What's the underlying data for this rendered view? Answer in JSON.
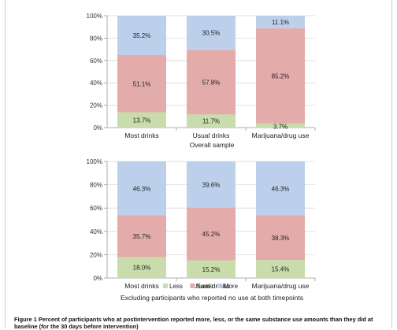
{
  "colors": {
    "less": "#c9dcab",
    "same": "#e4abab",
    "more": "#bcd0ec",
    "axis": "#9a9a9a",
    "grid": "#d9d9d9"
  },
  "chart_data": [
    {
      "type": "bar",
      "stacked": true,
      "percent": true,
      "categories": [
        "Most drinks",
        "Usual drinks",
        "Marijuana/drug use"
      ],
      "series": [
        {
          "name": "Less",
          "values": [
            13.7,
            11.7,
            3.7
          ],
          "labels": [
            "13.7%",
            "11.7%",
            "3.7%"
          ]
        },
        {
          "name": "Same",
          "values": [
            51.1,
            57.8,
            85.2
          ],
          "labels": [
            "51.1%",
            "57.8%",
            "85.2%"
          ]
        },
        {
          "name": "More",
          "values": [
            35.2,
            30.5,
            11.1
          ],
          "labels": [
            "35.2%",
            "30.5%",
            "11.1%"
          ]
        }
      ],
      "ylim": [
        0,
        100
      ],
      "yticks": [
        "0%",
        "20%",
        "40%",
        "60%",
        "80%",
        "100%"
      ],
      "xlabel": "Overall sample",
      "grid": true,
      "legend": "none"
    },
    {
      "type": "bar",
      "stacked": true,
      "percent": true,
      "categories": [
        "Most drinks",
        "Usual drinks",
        "Marijuana/drug use"
      ],
      "series": [
        {
          "name": "Less",
          "values": [
            18.0,
            15.2,
            15.4
          ],
          "labels": [
            "18.0%",
            "15.2%",
            "15.4%"
          ]
        },
        {
          "name": "Same",
          "values": [
            35.7,
            45.2,
            38.3
          ],
          "labels": [
            "35.7%",
            "45.2%",
            "38.3%"
          ]
        },
        {
          "name": "More",
          "values": [
            46.3,
            39.6,
            46.3
          ],
          "labels": [
            "46.3%",
            "39.6%",
            "46.3%"
          ]
        }
      ],
      "ylim": [
        0,
        100
      ],
      "yticks": [
        "0%",
        "20%",
        "40%",
        "60%",
        "80%",
        "100%"
      ],
      "xlabel": "Excluding participants who reported no use at both timepoints",
      "grid": true,
      "legend": "bottom"
    }
  ],
  "caption": {
    "label": "Figure 1",
    "text": "Percent of participants who at postintervention reported more, less, or the same substance use amounts than they did at baseline (for the 30 days before intervention)"
  }
}
